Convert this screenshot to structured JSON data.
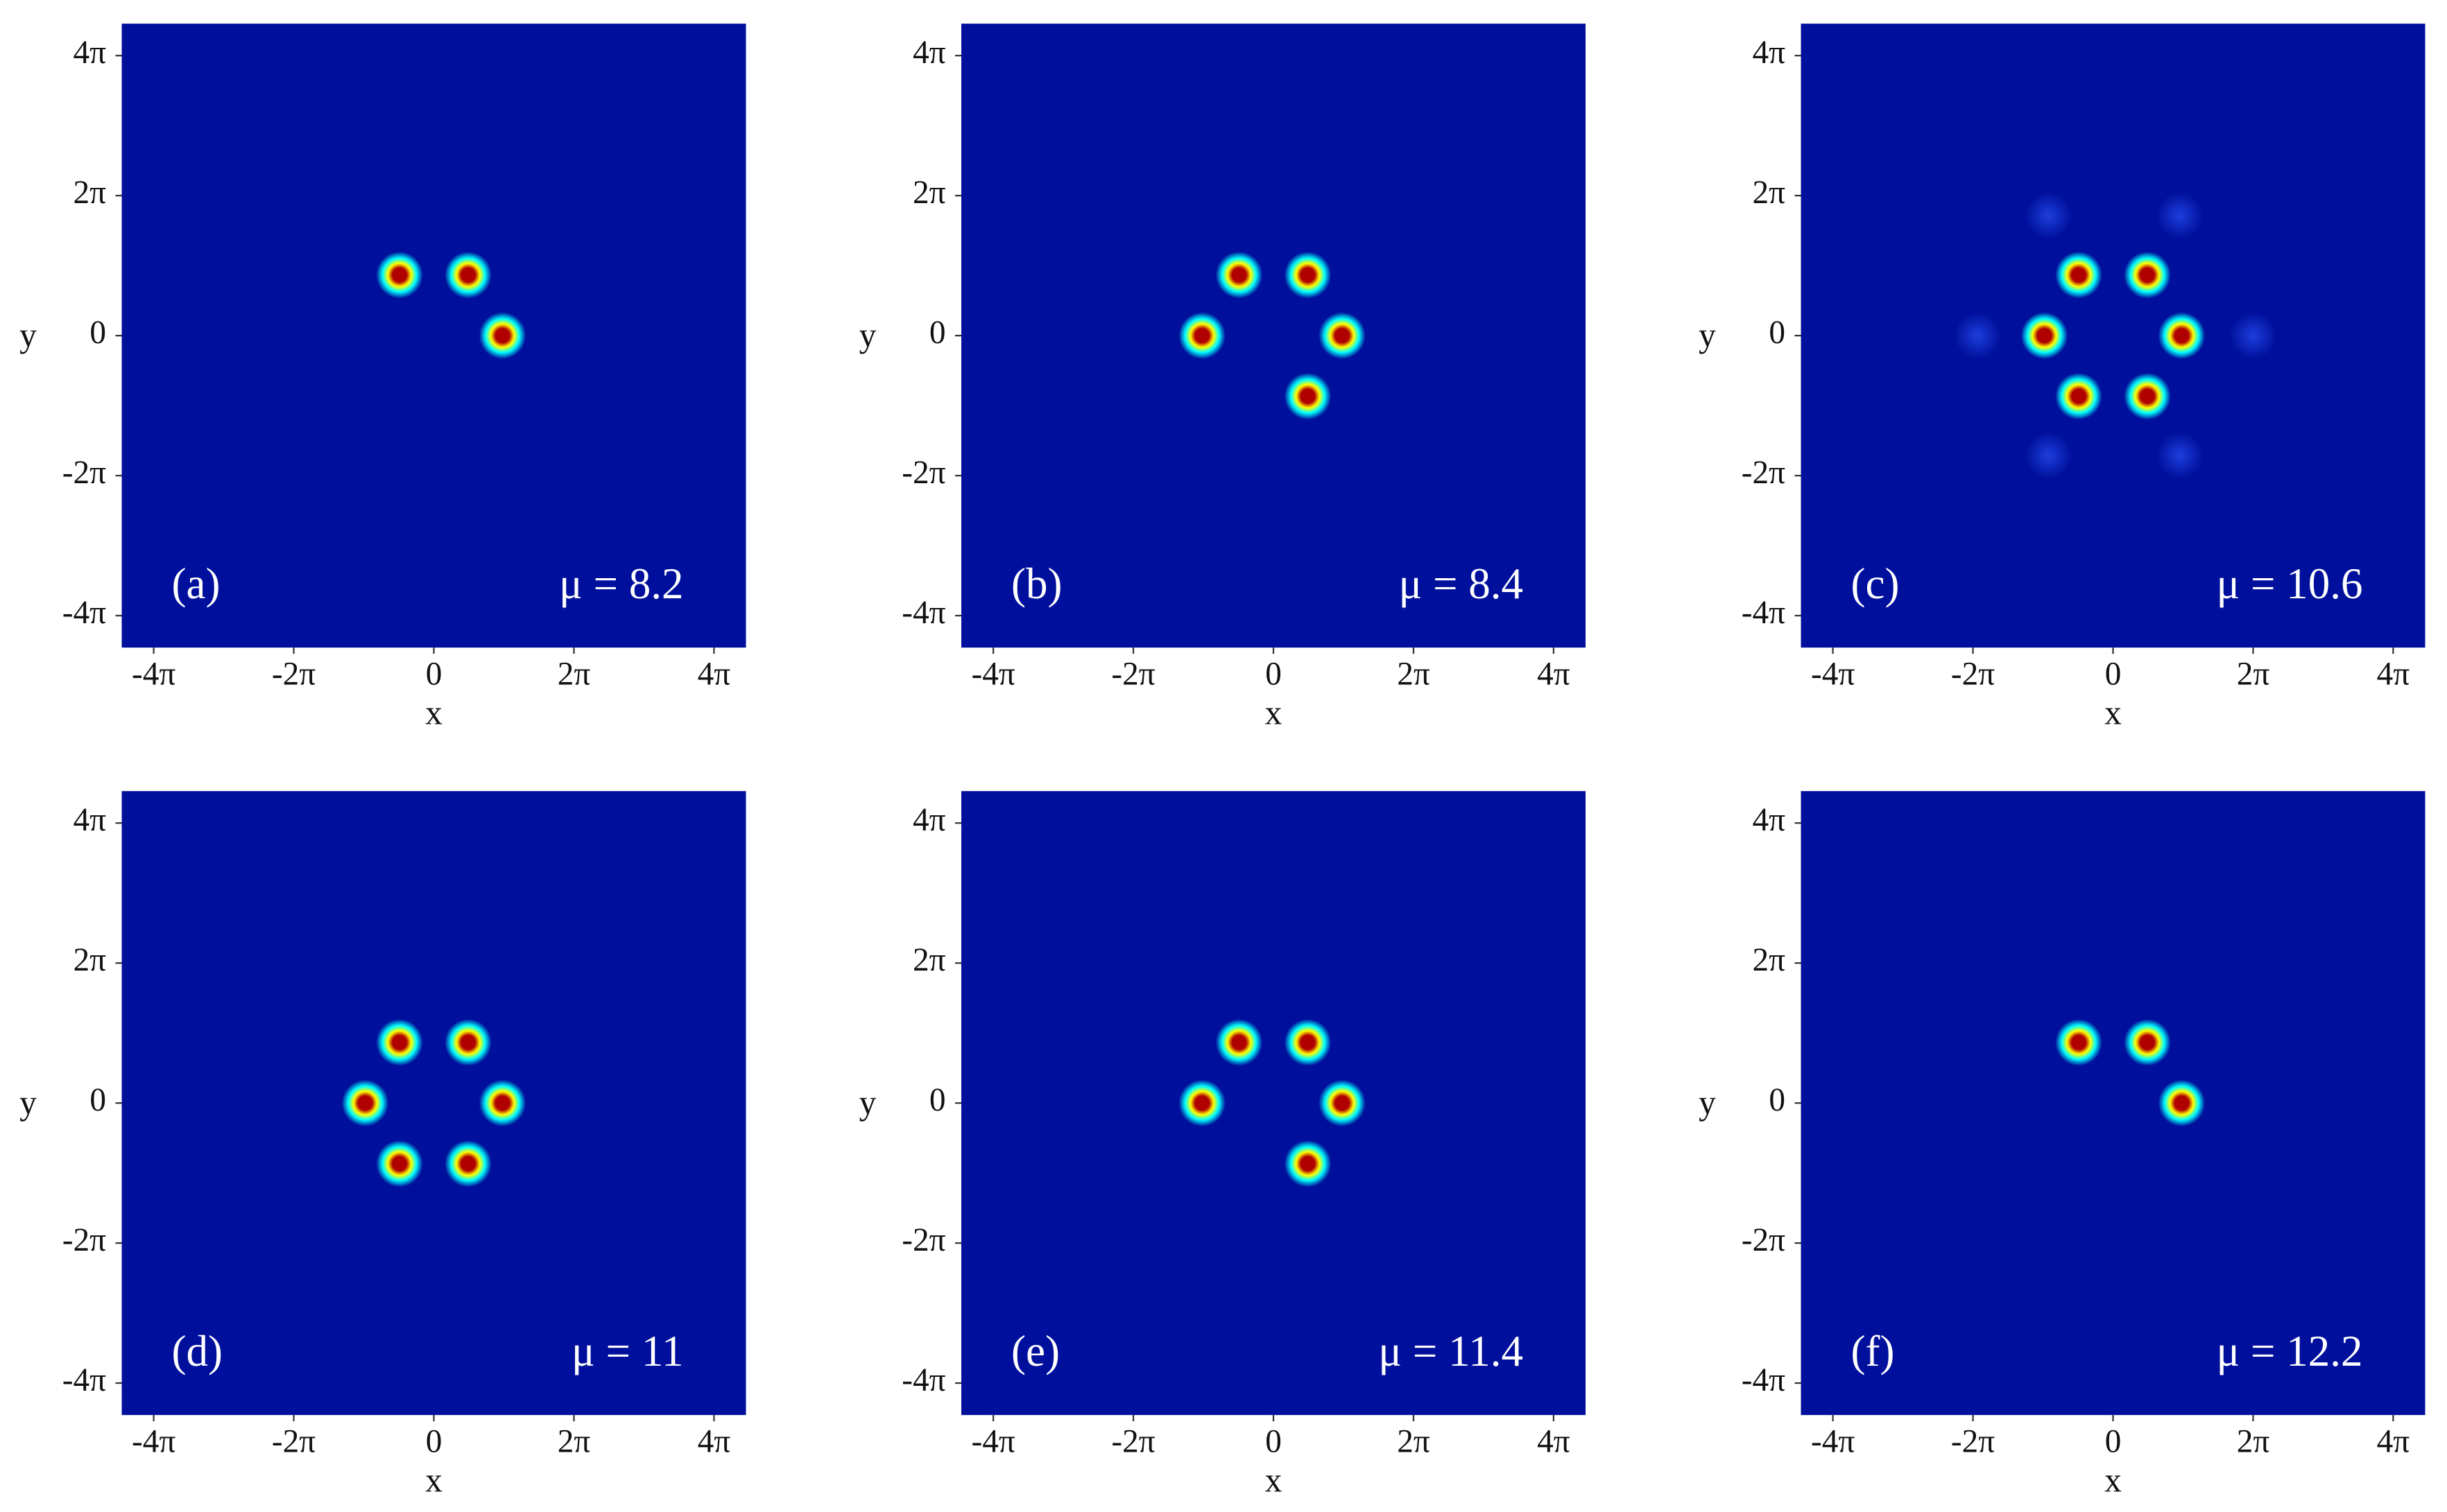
{
  "chart_data": [
    {
      "type": "scatter",
      "panel_label": "(a)",
      "annotation": "μ = 8.2",
      "xlabel": "x",
      "ylabel": "y",
      "background": "#00109c",
      "xlim": [
        -14,
        14
      ],
      "ylim": [
        -14,
        14
      ],
      "xticks": [
        {
          "value": -12.566,
          "label": "-4π"
        },
        {
          "value": -6.283,
          "label": "-2π"
        },
        0,
        {
          "value": 6.283,
          "label": "2π"
        },
        {
          "value": 12.566,
          "label": "4π"
        }
      ],
      "yticks": [
        {
          "value": -12.566,
          "label": "-4π"
        },
        {
          "value": -6.283,
          "label": "-2π"
        },
        0,
        {
          "value": 6.283,
          "label": "2π"
        },
        {
          "value": 12.566,
          "label": "4π"
        }
      ],
      "series": [
        {
          "color": "#b00000",
          "rings": [
            "#ffff00",
            "#00ffff"
          ],
          "x": [
            -1.54,
            1.54,
            3.08
          ],
          "values": [
            2.72,
            2.72,
            0
          ]
        }
      ]
    },
    {
      "type": "scatter",
      "panel_label": "(b)",
      "annotation": "μ = 8.4",
      "xlabel": "x",
      "ylabel": "y",
      "background": "#00109c",
      "xlim": [
        -14,
        14
      ],
      "ylim": [
        -14,
        14
      ],
      "xticks": [
        {
          "value": -12.566,
          "label": "-4π"
        },
        {
          "value": -6.283,
          "label": "-2π"
        },
        0,
        {
          "value": 6.283,
          "label": "2π"
        },
        {
          "value": 12.566,
          "label": "4π"
        }
      ],
      "yticks": [
        {
          "value": -12.566,
          "label": "-4π"
        },
        {
          "value": -6.283,
          "label": "-2π"
        },
        0,
        {
          "value": 6.283,
          "label": "2π"
        },
        {
          "value": 12.566,
          "label": "4π"
        }
      ],
      "series": [
        {
          "color": "#b00000",
          "rings": [
            "#ffff00",
            "#00ffff"
          ],
          "x": [
            -1.54,
            1.54,
            -3.2,
            3.08,
            1.54
          ],
          "values": [
            2.72,
            2.72,
            0,
            0,
            -2.72
          ]
        }
      ]
    },
    {
      "type": "scatter",
      "panel_label": "(c)",
      "annotation": "μ = 10.6",
      "xlabel": "x",
      "ylabel": "y",
      "background": "#00109c",
      "xlim": [
        -14,
        14
      ],
      "ylim": [
        -14,
        14
      ],
      "xticks": [
        {
          "value": -12.566,
          "label": "-4π"
        },
        {
          "value": -6.283,
          "label": "-2π"
        },
        0,
        {
          "value": 6.283,
          "label": "2π"
        },
        {
          "value": 12.566,
          "label": "4π"
        }
      ],
      "yticks": [
        {
          "value": -12.566,
          "label": "-4π"
        },
        {
          "value": -6.283,
          "label": "-2π"
        },
        0,
        {
          "value": 6.283,
          "label": "2π"
        },
        {
          "value": 12.566,
          "label": "4π"
        }
      ],
      "series": [
        {
          "color": "#b00000",
          "rings": [
            "#ffff00",
            "#00ffff"
          ],
          "x": [
            -1.54,
            1.54,
            -3.08,
            3.08,
            -1.54,
            1.54
          ],
          "values": [
            2.72,
            2.72,
            0,
            0,
            -2.72,
            -2.72
          ]
        },
        {
          "color": "#1d3fdc",
          "x": [
            -2.9,
            3.0,
            -6.07,
            6.28,
            -2.9,
            3.0
          ],
          "values": [
            5.38,
            5.38,
            0,
            0,
            -5.38,
            -5.38
          ]
        }
      ]
    },
    {
      "type": "scatter",
      "panel_label": "(d)",
      "annotation": "μ = 11",
      "xlabel": "x",
      "ylabel": "y",
      "background": "#00109c",
      "xlim": [
        -14,
        14
      ],
      "ylim": [
        -14,
        14
      ],
      "xticks": [
        {
          "value": -12.566,
          "label": "-4π"
        },
        {
          "value": -6.283,
          "label": "-2π"
        },
        0,
        {
          "value": 6.283,
          "label": "2π"
        },
        {
          "value": 12.566,
          "label": "4π"
        }
      ],
      "yticks": [
        {
          "value": -12.566,
          "label": "-4π"
        },
        {
          "value": -6.283,
          "label": "-2π"
        },
        0,
        {
          "value": 6.283,
          "label": "2π"
        },
        {
          "value": 12.566,
          "label": "4π"
        }
      ],
      "series": [
        {
          "color": "#b00000",
          "rings": [
            "#ffff00",
            "#00ffff"
          ],
          "x": [
            -1.54,
            1.54,
            -3.08,
            3.08,
            -1.54,
            1.54
          ],
          "values": [
            2.72,
            2.72,
            0,
            0,
            -2.72,
            -2.72
          ]
        }
      ]
    },
    {
      "type": "scatter",
      "panel_label": "(e)",
      "annotation": "μ = 11.4",
      "xlabel": "x",
      "ylabel": "y",
      "background": "#00109c",
      "xlim": [
        -14,
        14
      ],
      "ylim": [
        -14,
        14
      ],
      "xticks": [
        {
          "value": -12.566,
          "label": "-4π"
        },
        {
          "value": -6.283,
          "label": "-2π"
        },
        0,
        {
          "value": 6.283,
          "label": "2π"
        },
        {
          "value": 12.566,
          "label": "4π"
        }
      ],
      "yticks": [
        {
          "value": -12.566,
          "label": "-4π"
        },
        {
          "value": -6.283,
          "label": "-2π"
        },
        0,
        {
          "value": 6.283,
          "label": "2π"
        },
        {
          "value": 12.566,
          "label": "4π"
        }
      ],
      "series": [
        {
          "color": "#b00000",
          "rings": [
            "#ffff00",
            "#00ffff"
          ],
          "x": [
            -1.54,
            1.54,
            -3.2,
            3.08,
            1.54
          ],
          "values": [
            2.72,
            2.72,
            0,
            0,
            -2.72
          ]
        }
      ]
    },
    {
      "type": "scatter",
      "panel_label": "(f)",
      "annotation": "μ = 12.2",
      "xlabel": "x",
      "ylabel": "y",
      "background": "#00109c",
      "xlim": [
        -14,
        14
      ],
      "ylim": [
        -14,
        14
      ],
      "xticks": [
        {
          "value": -12.566,
          "label": "-4π"
        },
        {
          "value": -6.283,
          "label": "-2π"
        },
        0,
        {
          "value": 6.283,
          "label": "2π"
        },
        {
          "value": 12.566,
          "label": "4π"
        }
      ],
      "yticks": [
        {
          "value": -12.566,
          "label": "-4π"
        },
        {
          "value": -6.283,
          "label": "-2π"
        },
        0,
        {
          "value": 6.283,
          "label": "2π"
        },
        {
          "value": 12.566,
          "label": "4π"
        }
      ],
      "series": [
        {
          "color": "#b00000",
          "rings": [
            "#ffff00",
            "#00ffff"
          ],
          "x": [
            -1.54,
            1.54,
            3.08
          ],
          "values": [
            2.72,
            2.72,
            0
          ]
        }
      ]
    }
  ]
}
